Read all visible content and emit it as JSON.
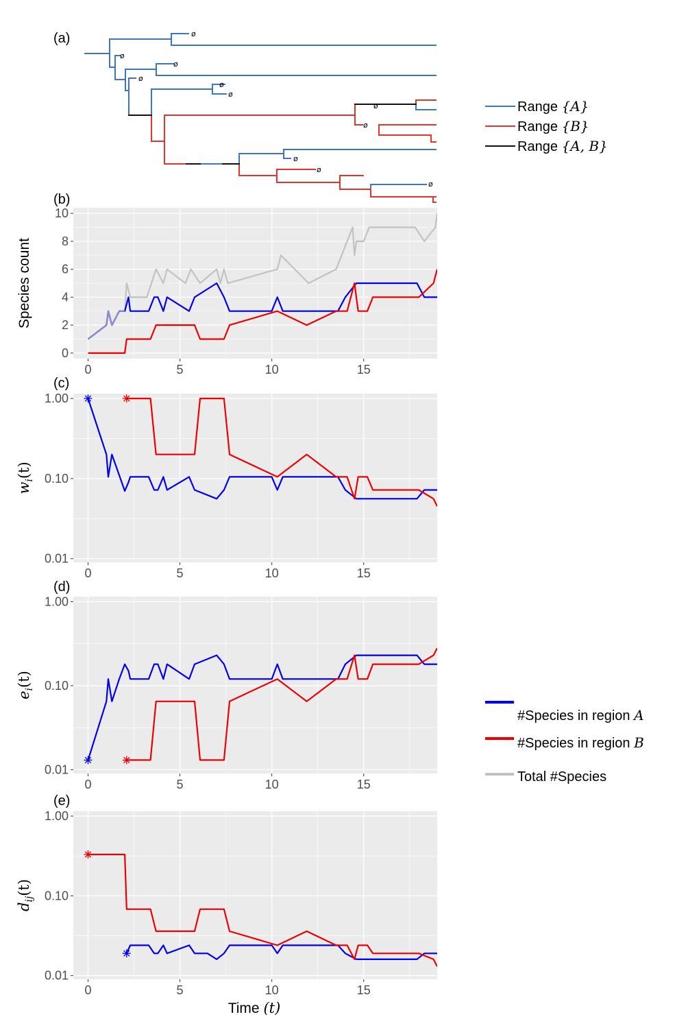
{
  "colors": {
    "blue_tree": "#3a76c4",
    "red_tree": "#e8332b",
    "black_tree": "#111111",
    "blue": "#0000ee",
    "red": "#ee0000",
    "gray": "#c2c2c2",
    "panel_bg": "#ebebeb",
    "grid": "#ffffff"
  },
  "tree": {
    "label": "(a)",
    "extinct_symbol": "ø",
    "legend": [
      {
        "text": "Range",
        "set": "{A}",
        "color": "#3a76c4"
      },
      {
        "text": "Range",
        "set": "{B}",
        "color": "#e8332b"
      },
      {
        "text": "Range",
        "set": "{A, B}",
        "color": "#111111"
      }
    ]
  },
  "x_axis": {
    "label": "Time",
    "var": "(t)",
    "range": [
      -0.8,
      19
    ],
    "ticks": [
      0,
      5,
      10,
      15
    ]
  },
  "chart_data": [
    {
      "type": "line",
      "panel": "(b)",
      "ylabel": "Species count",
      "ylim": [
        -0.4,
        10.4
      ],
      "yticks": [
        0,
        2,
        4,
        6,
        8,
        10
      ],
      "ytick_labels": [
        "0",
        "2",
        "4",
        "6",
        "8",
        "10"
      ],
      "scale": "linear",
      "series": [
        {
          "name": "Total #Species",
          "color": "#c2c2c2",
          "x": [
            0,
            1,
            1.1,
            1.3,
            1.7,
            2.0,
            2.1,
            2.3,
            2.6,
            3.2,
            3.7,
            4.1,
            4.3,
            5.3,
            5.6,
            6.1,
            7.0,
            7.2,
            7.4,
            7.6,
            10.3,
            10.5,
            12.0,
            13.5,
            14.4,
            14.5,
            14.6,
            14.7,
            15.0,
            15.3,
            17.8,
            18.3,
            18.9,
            19.0
          ],
          "y": [
            1,
            2,
            3,
            2,
            3,
            3,
            5,
            4,
            4,
            4,
            6,
            5,
            6,
            5,
            6,
            5,
            6,
            5,
            6,
            5,
            6,
            7,
            5,
            6,
            9,
            7,
            8,
            8,
            8,
            9,
            9,
            8,
            9,
            10
          ]
        },
        {
          "name": "#Species in region A",
          "color": "#0000ee",
          "x": [
            0,
            1,
            1.1,
            1.3,
            1.7,
            2.0,
            2.2,
            2.3,
            3.3,
            3.6,
            3.8,
            4.1,
            4.3,
            5.5,
            5.8,
            7.0,
            7.4,
            7.7,
            10.0,
            10.3,
            10.6,
            13.6,
            14.0,
            14.6,
            17.9,
            18.3,
            19.0
          ],
          "y": [
            1,
            2,
            3,
            2,
            3,
            3,
            4,
            3,
            3,
            4,
            4,
            3,
            4,
            3,
            4,
            5,
            4,
            3,
            3,
            4,
            3,
            3,
            4,
            5,
            5,
            4,
            4
          ]
        },
        {
          "name": "#Species in region B",
          "color": "#ee0000",
          "x": [
            0,
            2.0,
            2.1,
            3.4,
            3.7,
            5.8,
            6.1,
            7.4,
            7.7,
            10.3,
            11.9,
            13.5,
            14.1,
            14.5,
            14.7,
            15.2,
            15.5,
            18.0,
            18.8,
            19.0
          ],
          "y": [
            0,
            0,
            1,
            1,
            2,
            2,
            1,
            1,
            2,
            3,
            2,
            3,
            3,
            5,
            3,
            3,
            4,
            4,
            5,
            6
          ]
        }
      ]
    },
    {
      "type": "line",
      "panel": "(c)",
      "ylabel": "w",
      "ylabel_sub": "i",
      "ylabel_arg": "(t)",
      "scale": "log",
      "ylim": [
        0.009,
        1.15
      ],
      "yticks": [
        0.01,
        0.1,
        1.0
      ],
      "ytick_labels": [
        "0.01",
        "0.10",
        "1.00"
      ],
      "series": [
        {
          "name": "#Species in region A",
          "color": "#0000ee",
          "x": [
            0,
            1.0,
            1.1,
            1.3,
            1.7,
            2.0,
            2.2,
            2.3,
            3.3,
            3.6,
            3.8,
            4.1,
            4.3,
            5.5,
            5.8,
            7.0,
            7.4,
            7.7,
            10.0,
            10.3,
            10.6,
            13.6,
            14.0,
            14.6,
            17.9,
            18.3,
            19.0
          ],
          "y": [
            1.0,
            0.2,
            0.105,
            0.2,
            0.11,
            0.07,
            0.09,
            0.105,
            0.105,
            0.072,
            0.072,
            0.105,
            0.072,
            0.105,
            0.072,
            0.056,
            0.072,
            0.105,
            0.105,
            0.072,
            0.105,
            0.105,
            0.072,
            0.056,
            0.056,
            0.072,
            0.072
          ]
        },
        {
          "name": "#Species in region B",
          "color": "#ee0000",
          "x": [
            2.1,
            3.4,
            3.7,
            5.8,
            6.1,
            7.4,
            7.7,
            10.3,
            11.9,
            13.5,
            14.1,
            14.5,
            14.7,
            15.2,
            15.5,
            18.0,
            18.8,
            19.0
          ],
          "y": [
            1.0,
            1.0,
            0.2,
            0.2,
            1.0,
            1.0,
            0.2,
            0.105,
            0.2,
            0.105,
            0.105,
            0.056,
            0.105,
            0.105,
            0.072,
            0.072,
            0.056,
            0.045
          ]
        }
      ],
      "markers": [
        {
          "x": 0,
          "y": 1.0,
          "color": "#0000ee"
        },
        {
          "x": 2.1,
          "y": 1.0,
          "color": "#ee0000"
        }
      ]
    },
    {
      "type": "line",
      "panel": "(d)",
      "ylabel": "e",
      "ylabel_sub": "i",
      "ylabel_arg": "(t)",
      "scale": "log",
      "ylim": [
        0.009,
        1.15
      ],
      "yticks": [
        0.01,
        0.1,
        1.0
      ],
      "ytick_labels": [
        "0.01",
        "0.10",
        "1.00"
      ],
      "series": [
        {
          "name": "#Species in region A",
          "color": "#0000ee",
          "x": [
            0,
            1.0,
            1.1,
            1.3,
            1.7,
            2.0,
            2.2,
            2.3,
            3.3,
            3.6,
            3.8,
            4.1,
            4.3,
            5.5,
            5.8,
            7.0,
            7.4,
            7.7,
            10.0,
            10.3,
            10.6,
            13.6,
            14.0,
            14.6,
            17.9,
            18.3,
            19.0
          ],
          "y": [
            0.013,
            0.065,
            0.12,
            0.065,
            0.12,
            0.18,
            0.15,
            0.12,
            0.12,
            0.18,
            0.18,
            0.12,
            0.18,
            0.12,
            0.18,
            0.23,
            0.18,
            0.12,
            0.12,
            0.18,
            0.12,
            0.12,
            0.18,
            0.23,
            0.23,
            0.18,
            0.18
          ]
        },
        {
          "name": "#Species in region B",
          "color": "#ee0000",
          "x": [
            2.1,
            3.4,
            3.7,
            5.8,
            6.1,
            7.4,
            7.7,
            10.3,
            11.9,
            13.5,
            14.1,
            14.5,
            14.7,
            15.2,
            15.5,
            18.0,
            18.8,
            19.0
          ],
          "y": [
            0.013,
            0.013,
            0.065,
            0.065,
            0.013,
            0.013,
            0.065,
            0.12,
            0.065,
            0.12,
            0.12,
            0.23,
            0.12,
            0.12,
            0.18,
            0.18,
            0.23,
            0.28
          ]
        }
      ],
      "markers": [
        {
          "x": 0,
          "y": 0.013,
          "color": "#0000ee"
        },
        {
          "x": 2.1,
          "y": 0.013,
          "color": "#ee0000"
        }
      ]
    },
    {
      "type": "line",
      "panel": "(e)",
      "ylabel": "d",
      "ylabel_sub": "ij",
      "ylabel_arg": "(t)",
      "scale": "log",
      "ylim": [
        0.009,
        1.15
      ],
      "yticks": [
        0.01,
        0.1,
        1.0
      ],
      "ytick_labels": [
        "0.01",
        "0.10",
        "1.00"
      ],
      "series": [
        {
          "name": "#Species in region A",
          "color": "#0000ee",
          "x": [
            2.1,
            2.3,
            3.3,
            3.6,
            3.8,
            4.1,
            4.3,
            5.5,
            5.8,
            6.5,
            7.0,
            7.4,
            7.7,
            10.0,
            10.3,
            10.6,
            13.6,
            14.0,
            14.6,
            17.9,
            18.3,
            19.0
          ],
          "y": [
            0.019,
            0.024,
            0.024,
            0.019,
            0.019,
            0.024,
            0.019,
            0.024,
            0.019,
            0.019,
            0.016,
            0.019,
            0.024,
            0.024,
            0.019,
            0.024,
            0.024,
            0.019,
            0.016,
            0.016,
            0.019,
            0.019
          ]
        },
        {
          "name": "#Species in region B",
          "color": "#ee0000",
          "x": [
            0,
            2.0,
            2.1,
            3.4,
            3.7,
            5.8,
            6.1,
            7.4,
            7.7,
            10.3,
            11.9,
            13.5,
            14.1,
            14.5,
            14.7,
            15.2,
            15.5,
            18.0,
            18.8,
            19.0
          ],
          "y": [
            0.33,
            0.33,
            0.068,
            0.068,
            0.036,
            0.036,
            0.068,
            0.068,
            0.036,
            0.024,
            0.036,
            0.024,
            0.024,
            0.016,
            0.024,
            0.024,
            0.019,
            0.019,
            0.016,
            0.013
          ]
        }
      ],
      "markers": [
        {
          "x": 0,
          "y": 0.33,
          "color": "#ee0000"
        },
        {
          "x": 2.1,
          "y": 0.019,
          "color": "#0000ee"
        }
      ]
    }
  ],
  "series_legend": [
    {
      "text": "#Species in region",
      "var": "A",
      "color": "#0000ee"
    },
    {
      "text": "#Species in region",
      "var": "B",
      "color": "#ee0000"
    },
    {
      "text": "Total #Species",
      "var": "",
      "color": "#c2c2c2"
    }
  ]
}
